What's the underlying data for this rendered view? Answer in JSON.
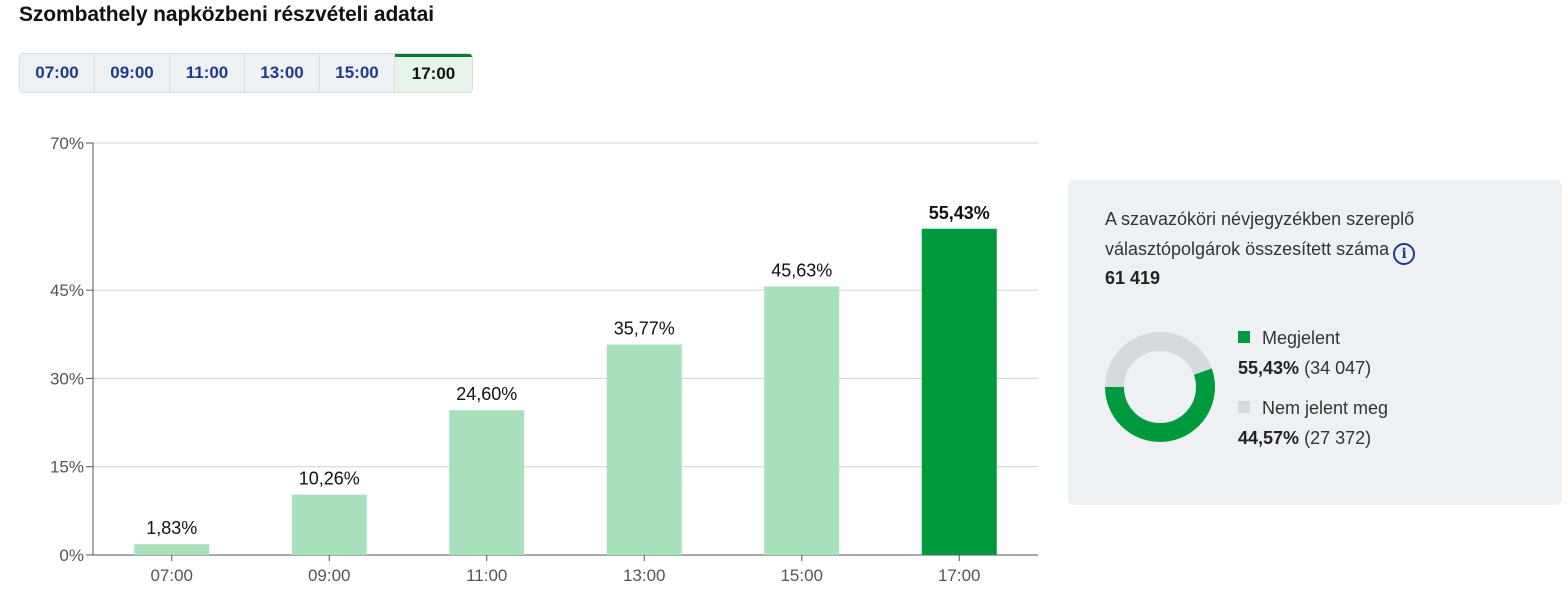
{
  "page_title": "Szombathely napközbeni részvételi adatai",
  "tabs": [
    {
      "label": "07:00",
      "active": false
    },
    {
      "label": "09:00",
      "active": false
    },
    {
      "label": "11:00",
      "active": false
    },
    {
      "label": "13:00",
      "active": false
    },
    {
      "label": "15:00",
      "active": false
    },
    {
      "label": "17:00",
      "active": true
    }
  ],
  "colors": {
    "bar_light": "#a8e0bc",
    "bar_active": "#009a3e",
    "donut_present": "#009a3e",
    "donut_absent": "#d4dadd",
    "tab_text": "#1f3a8a"
  },
  "chart_data": {
    "type": "bar",
    "categories": [
      "07:00",
      "09:00",
      "11:00",
      "13:00",
      "15:00",
      "17:00"
    ],
    "values": [
      1.83,
      10.26,
      24.6,
      35.77,
      45.63,
      55.43
    ],
    "value_labels": [
      "1,83%",
      "10,26%",
      "24,60%",
      "35,77%",
      "45,63%",
      "55,43%"
    ],
    "highlight_index": 5,
    "ylim": [
      0,
      70
    ],
    "yticks": [
      0,
      15,
      30,
      45,
      70
    ],
    "ytick_labels": [
      "0%",
      "15%",
      "30%",
      "45%",
      "70%"
    ],
    "grid": true,
    "title": "",
    "xlabel": "",
    "ylabel": ""
  },
  "info": {
    "description": "A szavazóköri névjegyzékben szereplő választópolgárok összesített száma",
    "info_icon": "info-icon",
    "total": "61 419",
    "legend": [
      {
        "label": "Megjelent",
        "percent": "55,43%",
        "count": "(34 047)",
        "fraction": 0.5543
      },
      {
        "label": "Nem jelent meg",
        "percent": "44,57%",
        "count": "(27 372)",
        "fraction": 0.4457
      }
    ]
  }
}
